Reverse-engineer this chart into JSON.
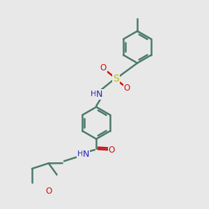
{
  "bg_color": "#e8e8e8",
  "bond_color": "#4a7a6a",
  "N_color": "#2020bb",
  "O_color": "#cc1010",
  "S_color": "#bbbb00",
  "line_width": 1.8,
  "font_size": 8.5,
  "fig_w": 3.0,
  "fig_h": 3.0,
  "dpi": 100,
  "xlim": [
    0,
    10
  ],
  "ylim": [
    0,
    10
  ]
}
